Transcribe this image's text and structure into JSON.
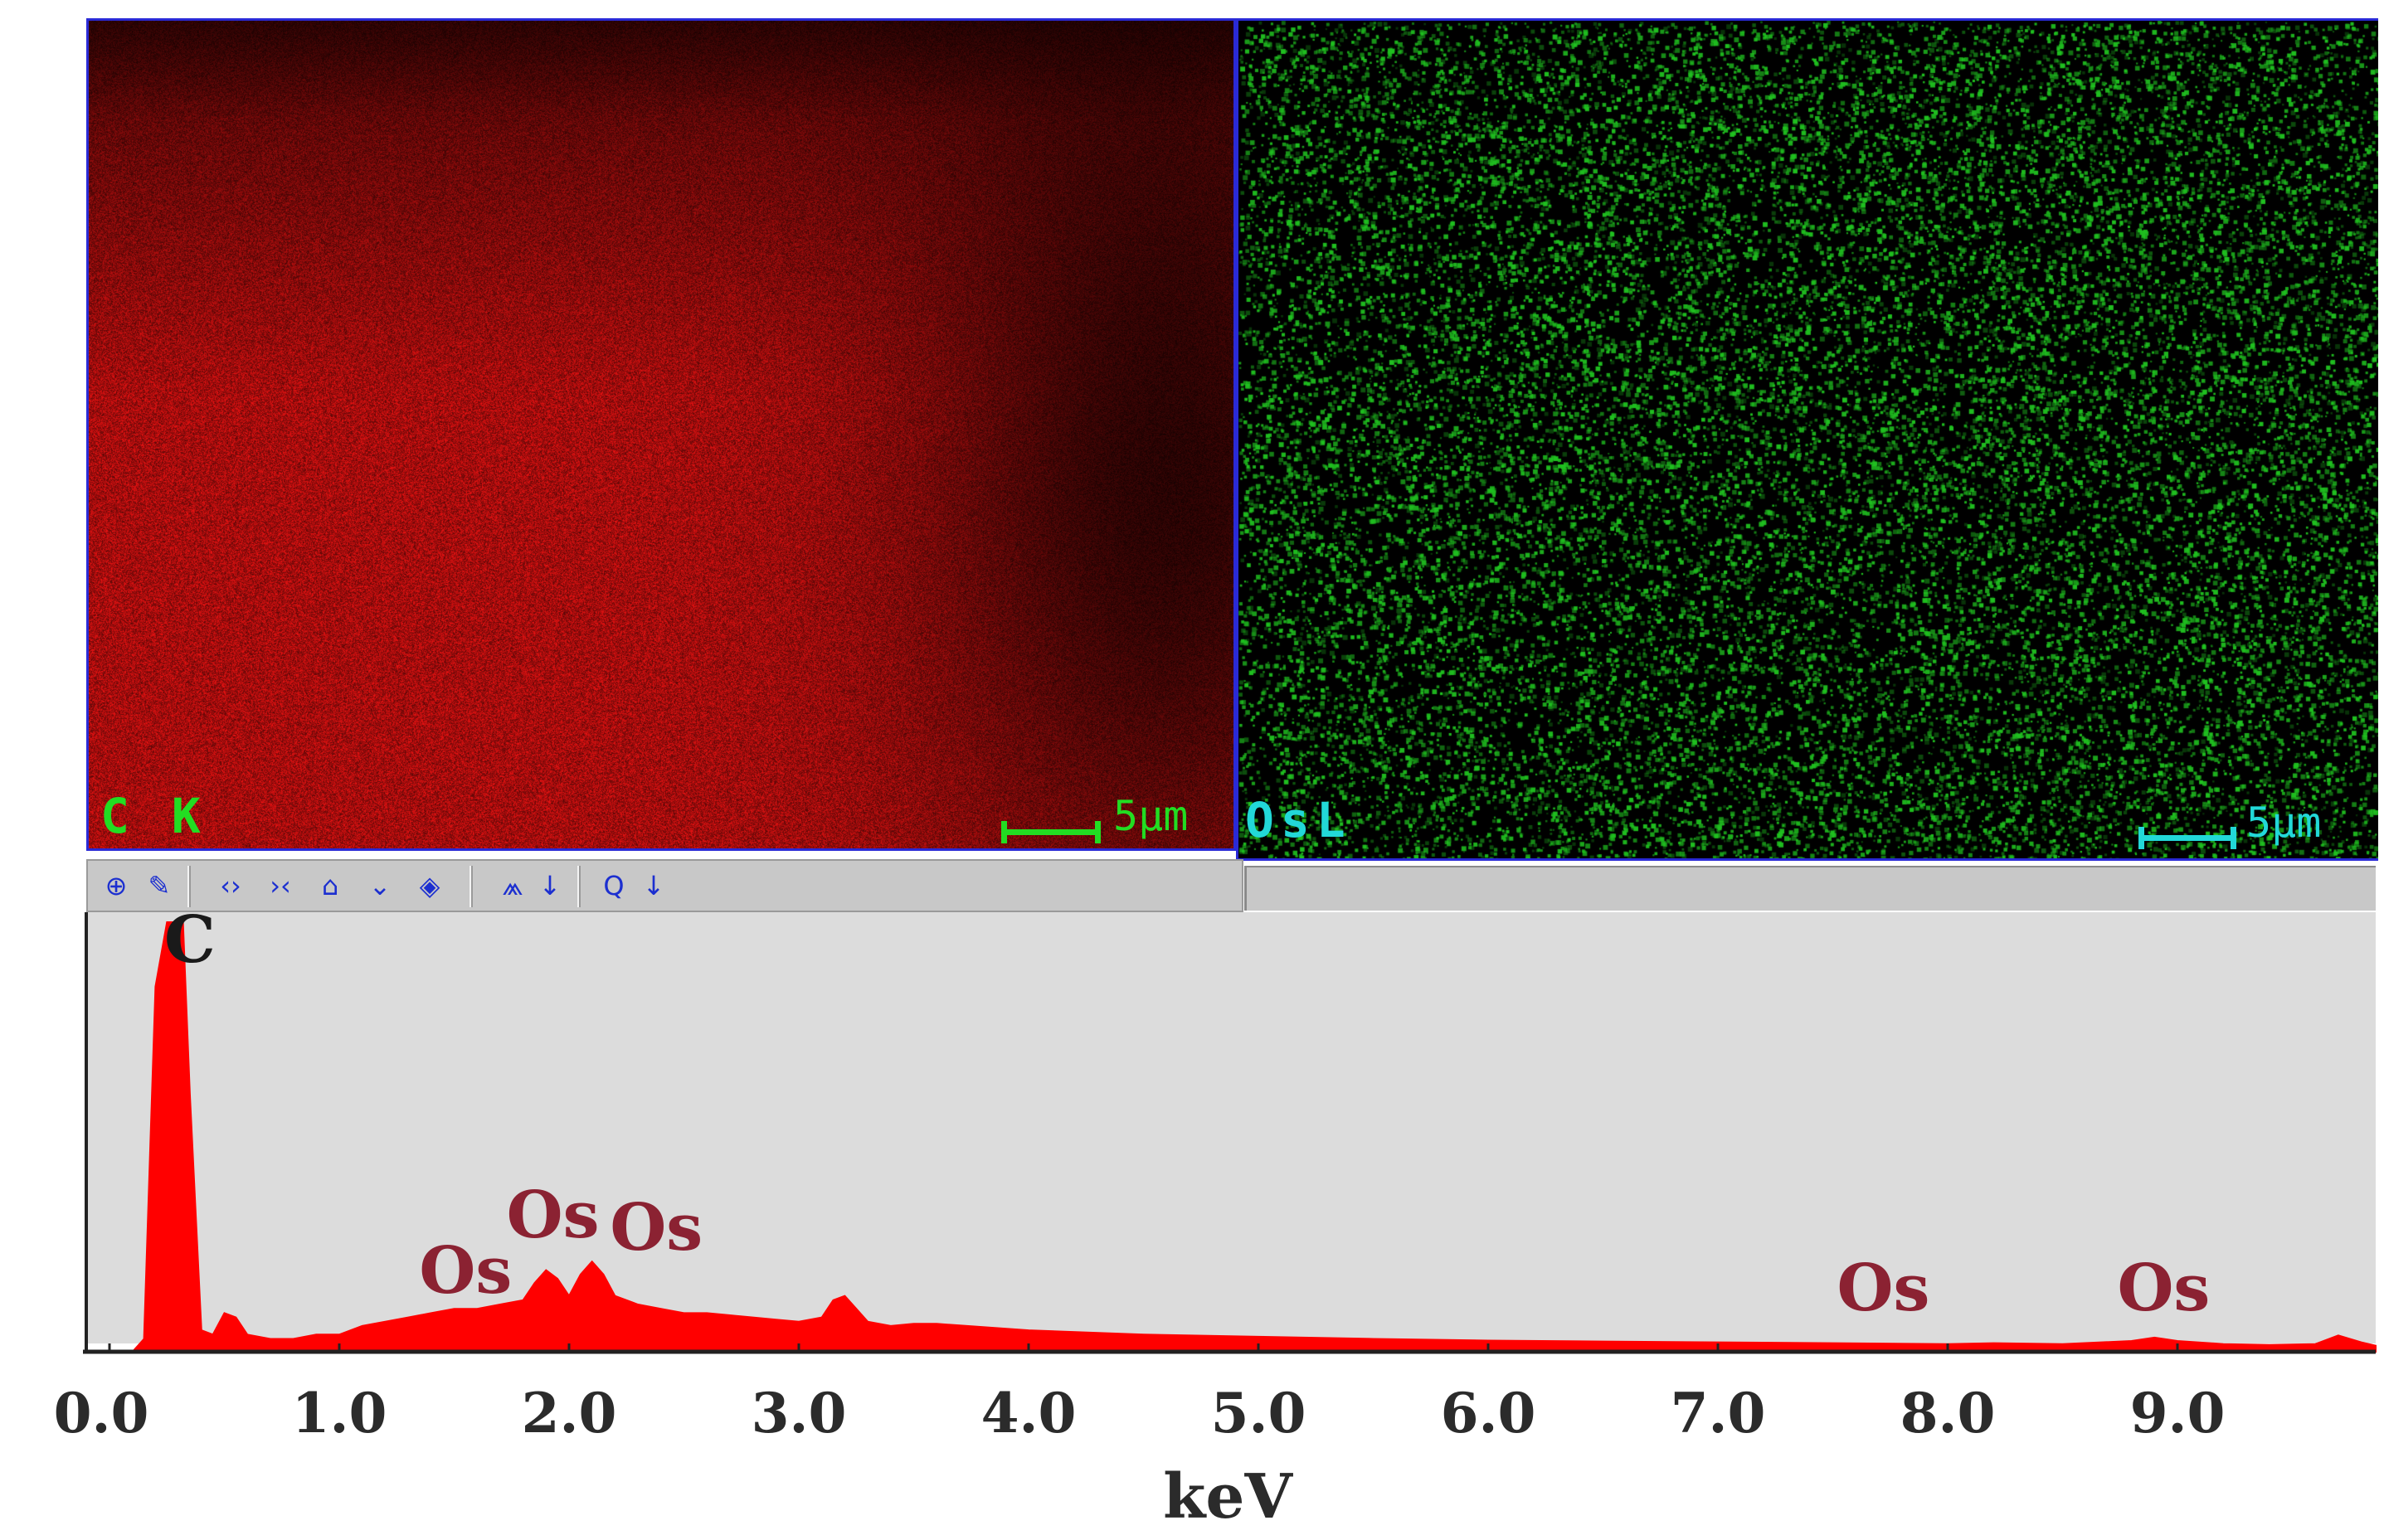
{
  "maps": {
    "carbon": {
      "label": "C K",
      "scale": "5µm",
      "label_color": "#22dd22",
      "scale_color": "#22dd22",
      "tint": "#cc1010"
    },
    "osmium": {
      "label": "OsL",
      "scale": "5µm",
      "label_color": "#22d8d8",
      "scale_color": "#22d8d8",
      "tint": "#20c020"
    }
  },
  "toolbar": {
    "icons": [
      "lock-icon",
      "brush-icon",
      "expand-horizontal-icon",
      "compress-horizontal-icon",
      "scale-up-icon",
      "scale-down-icon",
      "eraser-icon",
      "peak-id-icon",
      "down-arrow-icon",
      "zoom-icon",
      "down-arrow-icon"
    ],
    "glyphs": [
      "⊕",
      "✎",
      "‹›",
      "›‹",
      "⌂",
      "⌄",
      "◈",
      "⩕",
      "↓",
      "Q",
      "↓"
    ]
  },
  "chart_data": {
    "type": "area",
    "xlabel": "keV",
    "xlim": [
      0.0,
      10.0
    ],
    "x_ticks": [
      "0.0",
      "1.0",
      "2.0",
      "3.0",
      "4.0",
      "5.0",
      "6.0",
      "7.0",
      "8.0",
      "9.0"
    ],
    "ylim": [
      0,
      100
    ],
    "fill_color": "#ff0000",
    "plot_background": "#dcdcdc",
    "peak_labels": [
      {
        "text": "C",
        "x": 0.35,
        "y": 93
      },
      {
        "text": "Os",
        "x": 1.55,
        "y": 16
      },
      {
        "text": "Os",
        "x": 1.93,
        "y": 29
      },
      {
        "text": "Os",
        "x": 2.38,
        "y": 26
      },
      {
        "text": "Os",
        "x": 7.72,
        "y": 12
      },
      {
        "text": "Os",
        "x": 8.94,
        "y": 12
      }
    ],
    "spectrum": {
      "x": [
        0.1,
        0.15,
        0.2,
        0.25,
        0.28,
        0.32,
        0.35,
        0.4,
        0.45,
        0.5,
        0.55,
        0.6,
        0.7,
        0.8,
        0.9,
        1.0,
        1.1,
        1.2,
        1.3,
        1.4,
        1.5,
        1.6,
        1.7,
        1.8,
        1.85,
        1.9,
        1.95,
        2.0,
        2.05,
        2.1,
        2.15,
        2.2,
        2.3,
        2.4,
        2.5,
        2.6,
        2.7,
        2.8,
        2.9,
        3.0,
        3.1,
        3.15,
        3.2,
        3.25,
        3.3,
        3.4,
        3.5,
        3.6,
        4.0,
        4.5,
        5.0,
        5.5,
        6.0,
        6.5,
        7.0,
        7.5,
        8.0,
        8.2,
        8.5,
        8.8,
        8.9,
        9.0,
        9.2,
        9.4,
        9.6,
        9.7,
        9.8,
        10.0
      ],
      "y": [
        0,
        3,
        85,
        100,
        100,
        100,
        60,
        5,
        4,
        9,
        8,
        4,
        3,
        3,
        4,
        4,
        6,
        7,
        8,
        9,
        10,
        10,
        11,
        12,
        16,
        19,
        17,
        13,
        18,
        21,
        18,
        13,
        11,
        10,
        9,
        9,
        8.5,
        8,
        7.5,
        7,
        8,
        12,
        13,
        10,
        7,
        6,
        6.5,
        6.5,
        5,
        4,
        3.5,
        3,
        2.6,
        2.4,
        2.2,
        2,
        1.8,
        2,
        1.8,
        2.5,
        3.3,
        2.5,
        1.8,
        1.6,
        1.8,
        3.8,
        2.2,
        1.4
      ]
    }
  }
}
